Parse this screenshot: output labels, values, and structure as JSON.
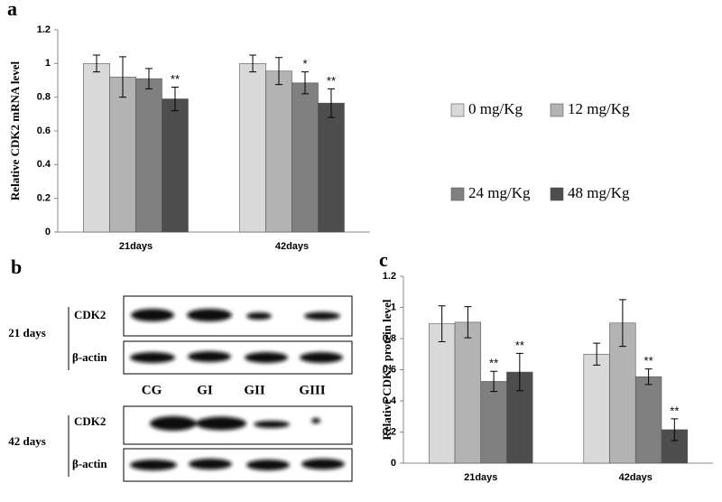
{
  "chart_data": [
    {
      "type": "bar",
      "label": "a",
      "y_label": "Relative CDK2 mRNA level",
      "categories": [
        "21days",
        "42days"
      ],
      "series": [
        {
          "name": "0 mg/Kg",
          "color": "#d9d9d9",
          "values": [
            1.0,
            1.0
          ],
          "errors": [
            0.05,
            0.05
          ]
        },
        {
          "name": "12 mg/Kg",
          "color": "#b3b3b3",
          "values": [
            0.92,
            0.955
          ],
          "errors": [
            0.12,
            0.08
          ]
        },
        {
          "name": "24 mg/Kg",
          "color": "#808080",
          "values": [
            0.91,
            0.885
          ],
          "errors": [
            0.06,
            0.065
          ],
          "significance": [
            null,
            "*"
          ]
        },
        {
          "name": "48 mg/Kg",
          "color": "#4d4d4d",
          "values": [
            0.79,
            0.765
          ],
          "errors": [
            0.07,
            0.085
          ],
          "significance": [
            "**",
            "**"
          ]
        }
      ],
      "ylim": [
        0,
        1.2
      ],
      "yticks": [
        0,
        0.2,
        0.4,
        0.6,
        0.8,
        1,
        1.2
      ],
      "grid": false,
      "legend": "right"
    },
    {
      "type": "bar",
      "label": "c",
      "y_label": "Relative CDK2 protein level",
      "categories": [
        "21days",
        "42days"
      ],
      "series": [
        {
          "name": "0 mg/Kg",
          "color": "#d9d9d9",
          "values": [
            0.895,
            0.7
          ],
          "errors": [
            0.115,
            0.07
          ]
        },
        {
          "name": "12 mg/Kg",
          "color": "#b3b3b3",
          "values": [
            0.905,
            0.9
          ],
          "errors": [
            0.1,
            0.15
          ]
        },
        {
          "name": "24 mg/Kg",
          "color": "#808080",
          "values": [
            0.525,
            0.555
          ],
          "errors": [
            0.065,
            0.05
          ],
          "significance": [
            "**",
            "**"
          ]
        },
        {
          "name": "48 mg/Kg",
          "color": "#4d4d4d",
          "values": [
            0.585,
            0.215
          ],
          "errors": [
            0.12,
            0.07
          ],
          "significance": [
            "**",
            "**"
          ]
        }
      ],
      "ylim": [
        0,
        1.2
      ],
      "yticks": [
        0,
        0.2,
        0.4,
        0.6,
        0.8,
        1,
        1.2
      ],
      "grid": false,
      "legend": false
    }
  ],
  "blot": {
    "label": "b",
    "groups": [
      {
        "title": "21 days",
        "rows": [
          "CDK2",
          "β-actin"
        ]
      },
      {
        "title": "42 days",
        "rows": [
          "CDK2",
          "β-actin"
        ]
      }
    ],
    "lanes": [
      "CG",
      "GI",
      "GII",
      "GIII"
    ]
  }
}
